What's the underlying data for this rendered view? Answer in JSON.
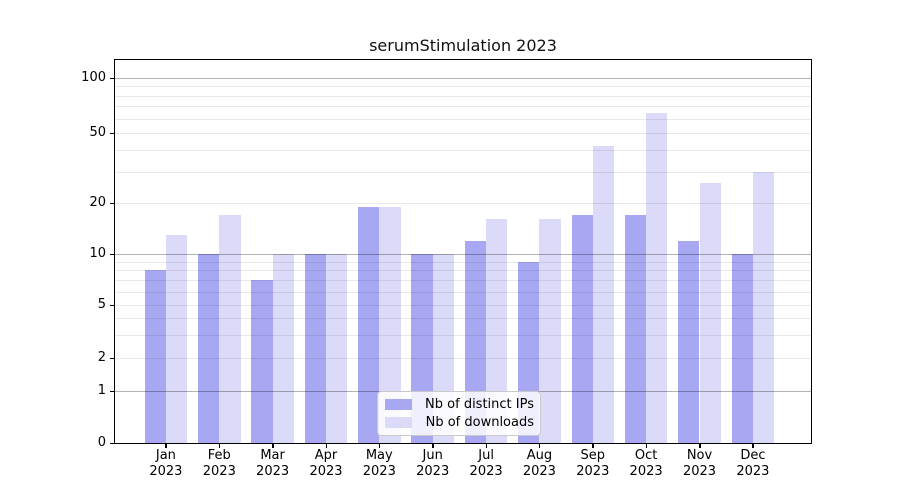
{
  "title": "serumStimulation 2023",
  "chart_data": {
    "type": "bar",
    "title": "serumStimulation 2023",
    "categories": [
      "Jan",
      "Feb",
      "Mar",
      "Apr",
      "May",
      "Jun",
      "Jul",
      "Aug",
      "Sep",
      "Oct",
      "Nov",
      "Dec"
    ],
    "x_tick_label_year": "2023",
    "series": [
      {
        "name": "Nb of distinct IPs",
        "color": "#a8a8f2",
        "values": [
          8,
          10,
          7,
          10,
          19,
          10,
          12,
          9,
          17,
          17,
          12,
          10
        ]
      },
      {
        "name": "Nb of downloads",
        "color": "#dbdbf9",
        "values": [
          13,
          17,
          10,
          10,
          19,
          10,
          16,
          16,
          42,
          64,
          26,
          30
        ]
      }
    ],
    "yscale": "symlog",
    "ylim": [
      0,
      126
    ],
    "yticks": [
      0,
      1,
      2,
      5,
      10,
      20,
      50,
      100
    ],
    "major_gridlines": [
      1,
      10,
      100
    ],
    "minor_gridlines": [
      2,
      3,
      4,
      5,
      6,
      7,
      8,
      9,
      20,
      30,
      40,
      50,
      60,
      70,
      80,
      90
    ],
    "grid": true,
    "legend_position": "lower center",
    "bar_colors": {
      "distinct_ips": "#a8a8f2",
      "downloads": "#dbdbf9"
    }
  }
}
